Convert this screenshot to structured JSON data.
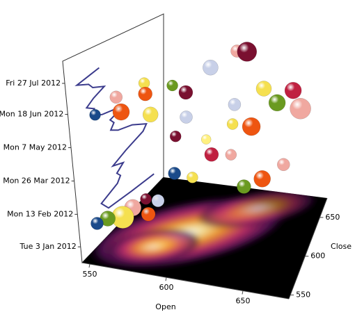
{
  "chart_data": {
    "type": "bubble3d",
    "x_label": "Open",
    "y_label": "Close",
    "xlim": [
      545,
      680
    ],
    "xticks": [
      550,
      600,
      650
    ],
    "ylim": [
      545,
      675
    ],
    "yticks": [
      550,
      600,
      650
    ],
    "zlim": [
      "2011-12-14",
      "2012-08-24"
    ],
    "zticks": [
      {
        "value": "2012-01-03",
        "label": "Tue 3 Jan 2012"
      },
      {
        "value": "2012-02-13",
        "label": "Mon 13 Feb 2012"
      },
      {
        "value": "2012-03-26",
        "label": "Mon 26 Mar 2012"
      },
      {
        "value": "2012-05-07",
        "label": "Mon 7 May 2012"
      },
      {
        "value": "2012-06-18",
        "label": "Mon 18 Jun 2012"
      },
      {
        "value": "2012-07-27",
        "label": "Fri 27 Jul 2012"
      }
    ],
    "wall_line": {
      "color": "#3b3b8c",
      "date": [
        "2012-01-03",
        "2012-01-10",
        "2012-01-17",
        "2012-01-24",
        "2012-01-31",
        "2012-02-07",
        "2012-02-14",
        "2012-02-21",
        "2012-02-28",
        "2012-03-06",
        "2012-03-13",
        "2012-03-20",
        "2012-03-27",
        "2012-04-03",
        "2012-04-10",
        "2012-04-17",
        "2012-04-24",
        "2012-05-01",
        "2012-05-08",
        "2012-05-15",
        "2012-05-22",
        "2012-05-29",
        "2012-06-05",
        "2012-06-12",
        "2012-06-19",
        "2012-06-26",
        "2012-07-03",
        "2012-07-10",
        "2012-07-17",
        "2012-07-24"
      ],
      "close": [
        660,
        625,
        590,
        585,
        580,
        605,
        610,
        605,
        615,
        600,
        620,
        645,
        650,
        640,
        630,
        610,
        600,
        605,
        600,
        620,
        590,
        575,
        580,
        570,
        580,
        595,
        580,
        575,
        560,
        590
      ]
    },
    "points": {
      "open": [
        620,
        610,
        600,
        570,
        575,
        585,
        560,
        590,
        565,
        580,
        600,
        555,
        640,
        625,
        650,
        665,
        655,
        640,
        630,
        615,
        600,
        620,
        630,
        600,
        610,
        650,
        660,
        640,
        575,
        570,
        585,
        560,
        555,
        590,
        580
      ],
      "close": [
        660,
        665,
        640,
        600,
        590,
        610,
        580,
        620,
        575,
        585,
        595,
        560,
        640,
        620,
        640,
        650,
        665,
        610,
        600,
        590,
        575,
        585,
        595,
        570,
        575,
        600,
        620,
        590,
        560,
        555,
        560,
        555,
        550,
        565,
        570
      ],
      "date": [
        "2012-07-25",
        "2012-07-20",
        "2012-07-10",
        "2012-07-05",
        "2012-06-28",
        "2012-06-30",
        "2012-06-25",
        "2012-06-15",
        "2012-06-10",
        "2012-06-05",
        "2012-06-01",
        "2012-06-12",
        "2012-06-20",
        "2012-06-08",
        "2012-06-02",
        "2012-05-20",
        "2012-06-01",
        "2012-05-20",
        "2012-05-28",
        "2012-05-10",
        "2012-05-20",
        "2012-04-25",
        "2012-04-20",
        "2012-04-05",
        "2012-03-30",
        "2012-03-20",
        "2012-03-25",
        "2012-03-15",
        "2012-02-20",
        "2012-02-10",
        "2012-02-15",
        "2012-02-05",
        "2012-02-01",
        "2012-03-01",
        "2012-02-25"
      ],
      "size": [
        14,
        9,
        11,
        8,
        10,
        8,
        9,
        10,
        12,
        11,
        9,
        8,
        11,
        9,
        12,
        15,
        12,
        13,
        8,
        7,
        8,
        10,
        8,
        9,
        8,
        12,
        9,
        10,
        12,
        16,
        10,
        11,
        9,
        9,
        8
      ],
      "color": [
        "#7a1030",
        "#f0a8a0",
        "#c8d0e8",
        "#f5e050",
        "#ee5511",
        "#6a9a20",
        "#f0a8a0",
        "#7a1030",
        "#ee5511",
        "#f5e050",
        "#c8d0e8",
        "#1a4a8a",
        "#f5e050",
        "#c8d0e8",
        "#6a9a20",
        "#f0a8a0",
        "#c02040",
        "#ee5511",
        "#f5e050",
        "#fff080",
        "#7a1030",
        "#c02040",
        "#f0a8a0",
        "#1a4a8a",
        "#f5e050",
        "#ee5511",
        "#f0a8a0",
        "#6a9a20",
        "#f0a8a0",
        "#f5e050",
        "#ee5511",
        "#6a9a20",
        "#1a4a8a",
        "#c8d0e8",
        "#7a1030"
      ]
    }
  }
}
